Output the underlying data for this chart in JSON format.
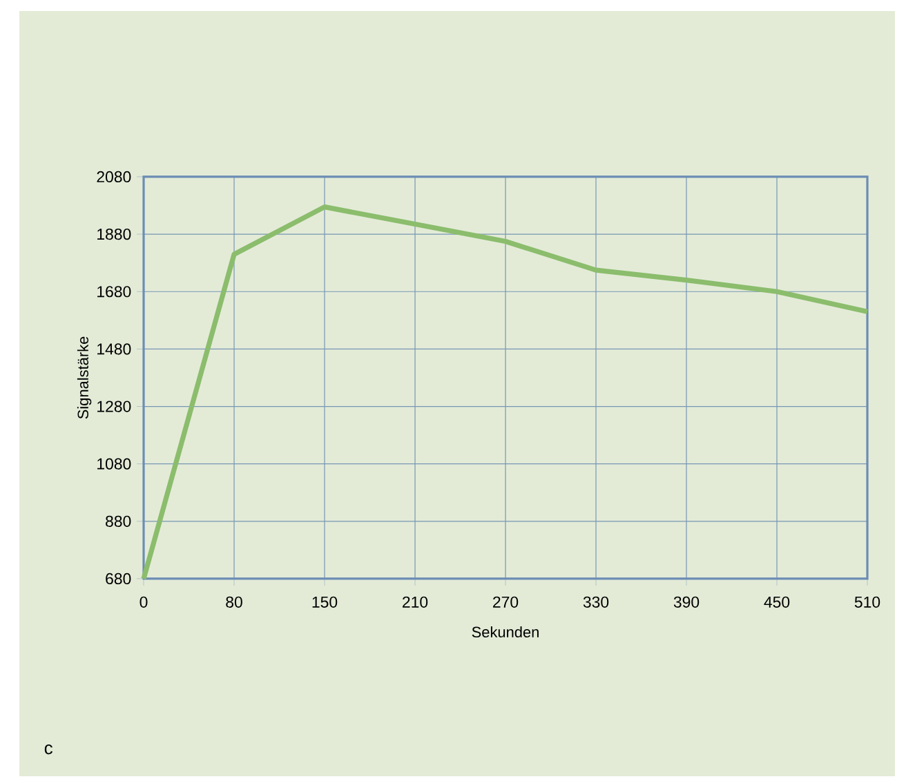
{
  "chart_data": {
    "type": "line",
    "xlabel": "Sekunden",
    "ylabel": "Signalstärke",
    "categories": [
      "0",
      "80",
      "150",
      "210",
      "270",
      "330",
      "390",
      "450",
      "510"
    ],
    "series": [
      {
        "color": "#8bbd6c",
        "values": [
          680,
          1810,
          1975,
          1915,
          1855,
          1755,
          1720,
          1680,
          1610
        ]
      }
    ],
    "ylim": [
      680,
      2080
    ],
    "yticks": [
      680,
      880,
      1080,
      1280,
      1480,
      1680,
      1880,
      2080
    ],
    "grid": true,
    "marker": "none",
    "line_style": "solid",
    "annotations": [
      "c"
    ]
  }
}
